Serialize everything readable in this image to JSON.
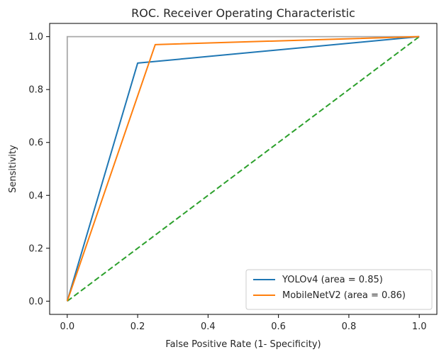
{
  "chart_data": {
    "type": "line",
    "title": "ROC. Receiver Operating Characteristic",
    "xlabel": "False Positive Rate (1- Specificity)",
    "ylabel": "Sensitivity",
    "xlim": [
      -0.05,
      1.05
    ],
    "ylim": [
      -0.05,
      1.05
    ],
    "x_ticks": [
      0.0,
      0.2,
      0.4,
      0.6,
      0.8,
      1.0
    ],
    "x_tick_labels": [
      "0.0",
      "0.2",
      "0.4",
      "0.6",
      "0.8",
      "1.0"
    ],
    "y_ticks": [
      0.0,
      0.2,
      0.4,
      0.6,
      0.8,
      1.0
    ],
    "y_tick_labels": [
      "0.0",
      "0.2",
      "0.4",
      "0.6",
      "0.8",
      "1.0"
    ],
    "grid": false,
    "legend_position": "bottom-right",
    "series": [
      {
        "name": "YOLOv4 (area = 0.85)",
        "color": "#1f77b4",
        "style": "solid",
        "x": [
          0.0,
          0.2,
          1.0
        ],
        "y": [
          0.0,
          0.9,
          1.0
        ]
      },
      {
        "name": "MobileNetV2 (area = 0.86)",
        "color": "#ff7f0e",
        "style": "solid",
        "x": [
          0.0,
          0.25,
          1.0
        ],
        "y": [
          0.0,
          0.97,
          1.0
        ]
      }
    ],
    "reference_lines": [
      {
        "color": "#2ca02c",
        "style": "dashed",
        "x": [
          0.0,
          1.0
        ],
        "y": [
          0.0,
          1.0
        ]
      },
      {
        "color": "#a9a9a9",
        "style": "solid",
        "x": [
          0.0,
          0.0,
          1.0
        ],
        "y": [
          0.0,
          1.0,
          1.0
        ]
      }
    ]
  }
}
